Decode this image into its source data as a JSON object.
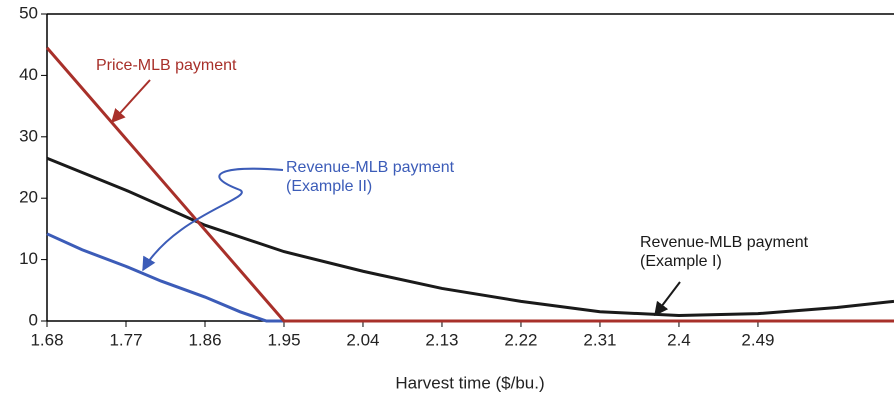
{
  "chart_data": {
    "type": "line",
    "x_label": "Harvest time ($/bu.)",
    "xlim": [
      1.68,
      2.645
    ],
    "ylim": [
      0,
      50
    ],
    "xticks": [
      1.68,
      1.77,
      1.86,
      1.95,
      2.04,
      2.13,
      2.22,
      2.31,
      2.4,
      2.49
    ],
    "yticks": [
      0,
      10,
      20,
      30,
      40,
      50
    ],
    "series": [
      {
        "color": "#3c5cb8",
        "x": [
          1.68,
          1.72,
          1.77,
          1.81,
          1.86,
          1.9,
          1.93,
          1.95
        ],
        "values": [
          14.2,
          11.6,
          8.9,
          6.5,
          3.9,
          1.5,
          0,
          0
        ]
      },
      {
        "color": "#1a1a1a",
        "x": [
          1.68,
          1.77,
          1.86,
          1.95,
          2.04,
          2.13,
          2.22,
          2.31,
          2.4,
          2.49,
          2.58,
          2.645
        ],
        "values": [
          26.5,
          21.3,
          15.6,
          11.3,
          8.1,
          5.3,
          3.2,
          1.5,
          0.9,
          1.2,
          2.2,
          3.2
        ]
      },
      {
        "color": "#a8302a",
        "x": [
          1.68,
          1.95,
          2.645
        ],
        "values": [
          44.5,
          0,
          0
        ]
      }
    ],
    "annotations": [
      {
        "lines": [
          "Price-MLB payment"
        ],
        "color": "#a8302a"
      },
      {
        "lines": [
          "Revenue-MLB payment",
          "(Example II)"
        ],
        "color": "#3c5cb8"
      },
      {
        "lines": [
          "Revenue-MLB payment",
          "(Example I)"
        ],
        "color": "#1a1a1a"
      }
    ]
  }
}
